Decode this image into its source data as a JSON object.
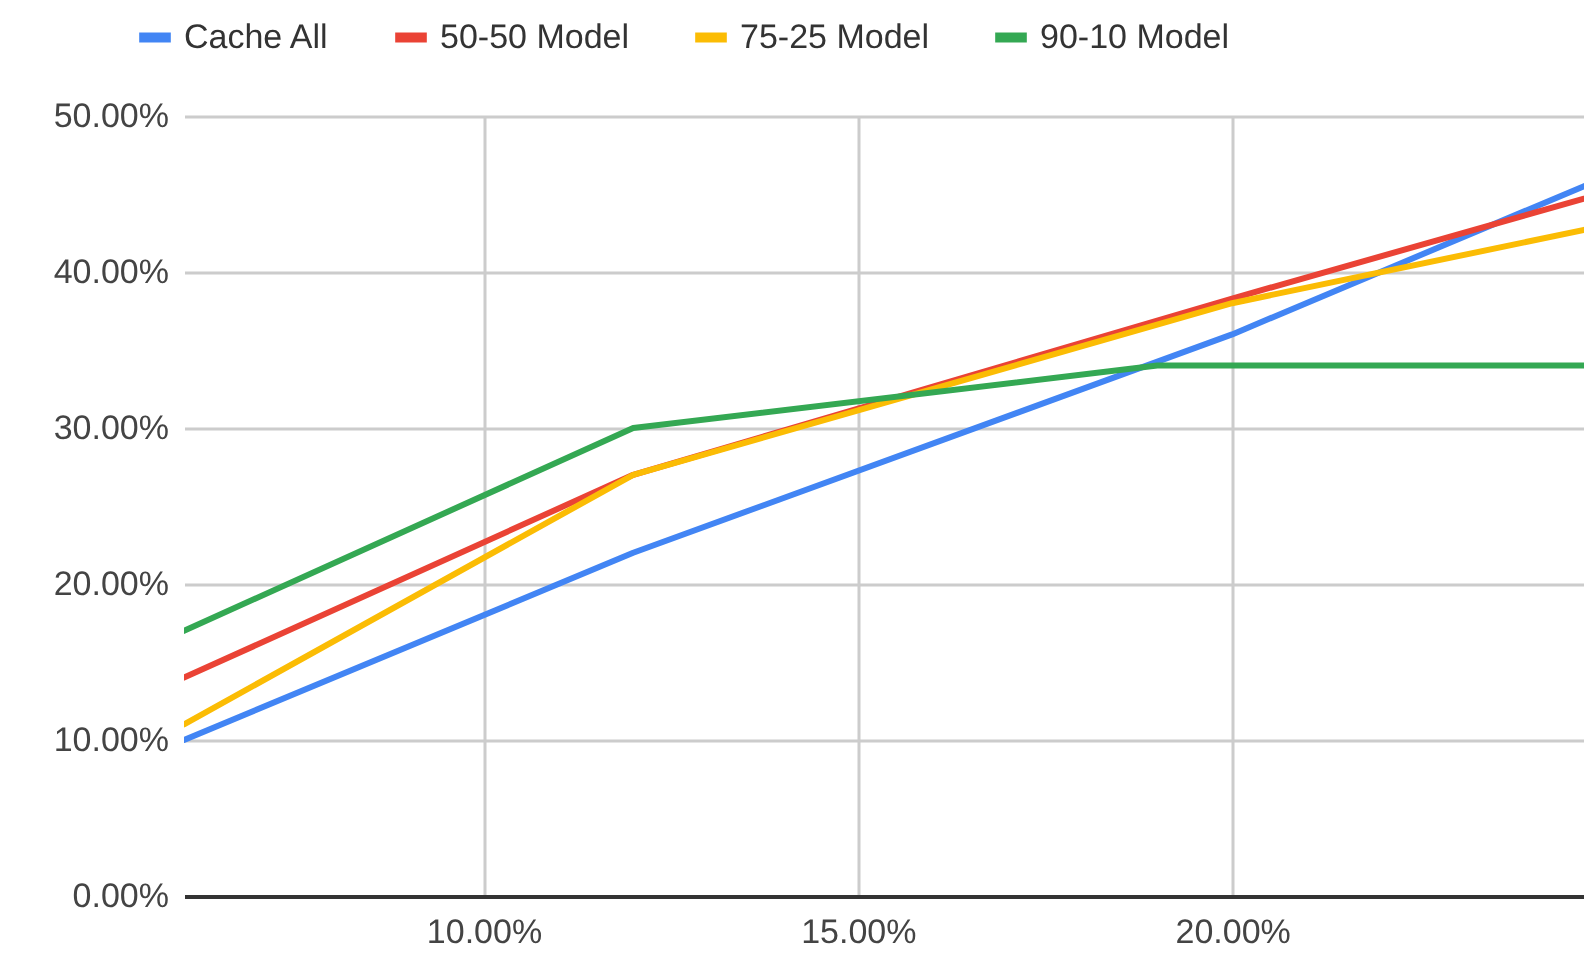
{
  "chart_data": {
    "type": "line",
    "legend": "top",
    "grid": true,
    "marker": "none",
    "line_style": "solid",
    "xlim": [
      6,
      24.7
    ],
    "ylim": [
      0,
      50
    ],
    "xticks": [
      {
        "value": 10,
        "label": "10.00%"
      },
      {
        "value": 15,
        "label": "15.00%"
      },
      {
        "value": 20,
        "label": "20.00%"
      }
    ],
    "yticks": [
      {
        "value": 0,
        "label": "0.00%"
      },
      {
        "value": 10,
        "label": "10.00%"
      },
      {
        "value": 20,
        "label": "20.00%"
      },
      {
        "value": 30,
        "label": "30.00%"
      },
      {
        "value": 40,
        "label": "40.00%"
      },
      {
        "value": 50,
        "label": "50.00%"
      }
    ],
    "series": [
      {
        "name": "Cache All",
        "color": "#4285f4",
        "x": [
          6,
          12,
          20,
          24.7
        ],
        "values": [
          10,
          22,
          36,
          45.5
        ]
      },
      {
        "name": "50-50 Model",
        "color": "#ea4335",
        "x": [
          6,
          12,
          20,
          24.7
        ],
        "values": [
          14,
          27,
          38.3,
          44.7
        ]
      },
      {
        "name": "75-25 Model",
        "color": "#fbbc04",
        "x": [
          6,
          12,
          20,
          24.7
        ],
        "values": [
          11,
          27,
          38,
          42.7
        ]
      },
      {
        "name": "90-10 Model",
        "color": "#34a853",
        "x": [
          6,
          12,
          19,
          24.7
        ],
        "values": [
          17,
          30,
          34,
          34
        ]
      }
    ]
  }
}
